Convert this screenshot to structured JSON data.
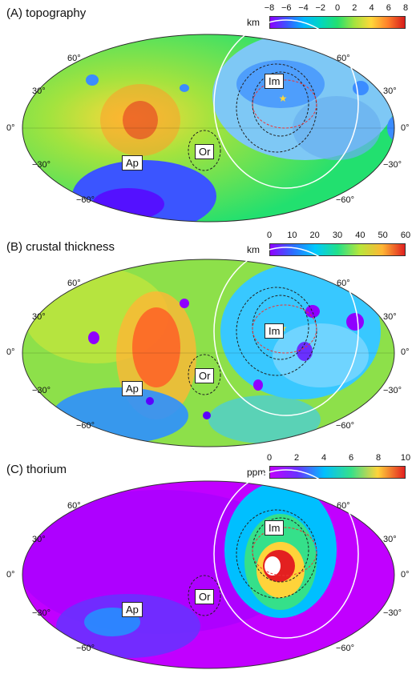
{
  "panels": [
    {
      "title": "(A)  topography",
      "unit": "km",
      "ticks": [
        "−8",
        "−6",
        "−4",
        "−2",
        "0",
        "2",
        "4",
        "6",
        "8"
      ],
      "colors": [
        "#8b00ff",
        "#3b55ff",
        "#00b7ff",
        "#00d7c0",
        "#22e06f",
        "#a4e33e",
        "#ffd83a",
        "#ff7f2a",
        "#d61b1b"
      ]
    },
    {
      "title": "(B)  crustal thickness",
      "unit": "km",
      "ticks": [
        "0",
        "10",
        "20",
        "30",
        "40",
        "50",
        "60"
      ],
      "colors": [
        "#8f00ff",
        "#2d6bff",
        "#00c9ff",
        "#20e08a",
        "#b8e63a",
        "#ffb634",
        "#e02020"
      ]
    },
    {
      "title": "(C)  thorium",
      "unit": "ppm",
      "ticks": [
        "0",
        "2",
        "4",
        "6",
        "8",
        "10"
      ],
      "colors": [
        "#c100ff",
        "#6a30ff",
        "#00bfff",
        "#35e08a",
        "#ffd33a",
        "#e32020"
      ]
    }
  ],
  "latitude_labels": {
    "left": [
      "60°",
      "30°",
      "0°",
      "−30°",
      "−60°"
    ],
    "right": [
      "60°",
      "30°",
      "0°",
      "−30°",
      "−60°"
    ]
  },
  "region_labels": [
    "Im",
    "Ap",
    "Or"
  ]
}
